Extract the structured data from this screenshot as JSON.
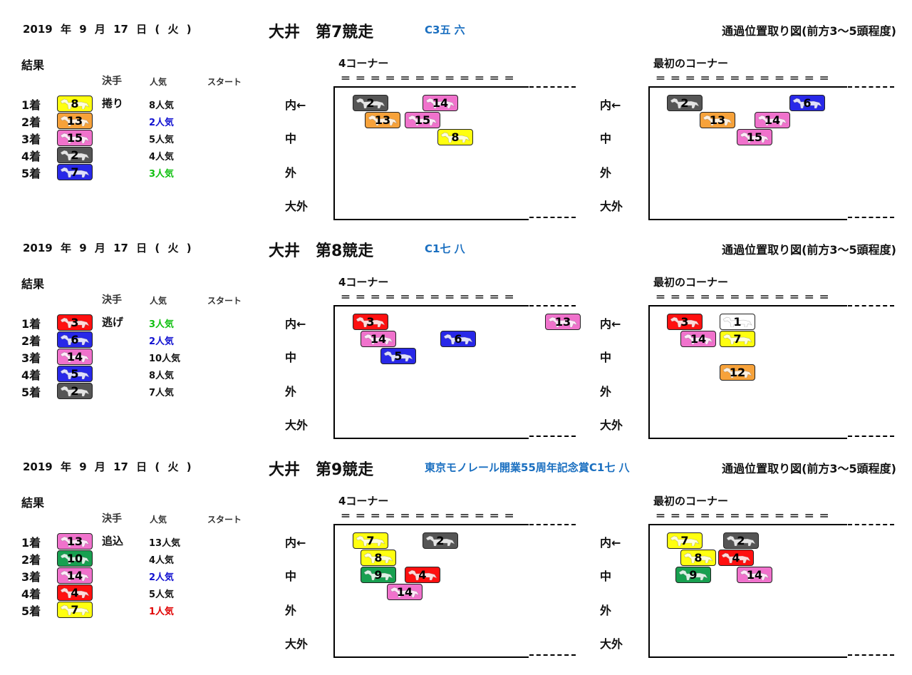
{
  "colors": {
    "white": "#ffffff",
    "black": "#555555",
    "red": "#ff1010",
    "blue": "#2828e8",
    "yellow": "#ffff10",
    "green": "#18a050",
    "orange": "#f7a23a",
    "pink": "#f072cc"
  },
  "pop_colors": {
    "1": "#e00000",
    "2": "#1010d0",
    "3": "#10c010",
    "default": "#111111"
  },
  "labels": {
    "result": "結果",
    "col_kimete": "決手",
    "col_pop": "人気",
    "col_start": "スタート",
    "corner4": "4コーナー",
    "corner_first": "最初のコーナー",
    "eq_marks": "＝ ＝ ＝ ＝ ＝ ＝ ＝ ＝ ＝ ＝ ＝ ＝",
    "rows": [
      "内←",
      "中",
      "外",
      "大外"
    ],
    "heading": "通過位置取り図(前方3～5頭程度)"
  },
  "races": [
    {
      "date": "2019 年 9 月 17 日 ( 火 )",
      "title": "大井　第7競走",
      "class": "C3五 六",
      "results": [
        {
          "pos": "1着",
          "num": "8",
          "color": "yellow",
          "kimete": "捲り",
          "pop": "8人気",
          "pop_rank": "8"
        },
        {
          "pos": "2着",
          "num": "13",
          "color": "orange",
          "kimete": "",
          "pop": "2人気",
          "pop_rank": "2"
        },
        {
          "pos": "3着",
          "num": "15",
          "color": "pink",
          "kimete": "",
          "pop": "5人気",
          "pop_rank": "5"
        },
        {
          "pos": "4着",
          "num": "2",
          "color": "black",
          "kimete": "",
          "pop": "4人気",
          "pop_rank": "4"
        },
        {
          "pos": "5着",
          "num": "7",
          "color": "blue",
          "kimete": "",
          "pop": "3人気",
          "pop_rank": "3"
        }
      ],
      "corner4": [
        {
          "num": "2",
          "color": "black"
        },
        {
          "num": "14",
          "color": "pink"
        },
        {
          "num": "13",
          "color": "orange"
        },
        {
          "num": "15",
          "color": "pink"
        },
        {
          "num": "8",
          "color": "yellow"
        }
      ],
      "corner_first": [
        {
          "num": "2",
          "color": "black"
        },
        {
          "num": "6",
          "color": "blue"
        },
        {
          "num": "13",
          "color": "orange"
        },
        {
          "num": "14",
          "color": "pink"
        },
        {
          "num": "15",
          "color": "pink"
        }
      ]
    },
    {
      "date": "2019 年 9 月 17 日 ( 火 )",
      "title": "大井　第8競走",
      "class": "C1七 八",
      "results": [
        {
          "pos": "1着",
          "num": "3",
          "color": "red",
          "kimete": "逃げ",
          "pop": "3人気",
          "pop_rank": "3"
        },
        {
          "pos": "2着",
          "num": "6",
          "color": "blue",
          "kimete": "",
          "pop": "2人気",
          "pop_rank": "2"
        },
        {
          "pos": "3着",
          "num": "14",
          "color": "pink",
          "kimete": "",
          "pop": "10人気",
          "pop_rank": "10"
        },
        {
          "pos": "4着",
          "num": "5",
          "color": "blue",
          "kimete": "",
          "pop": "8人気",
          "pop_rank": "8"
        },
        {
          "pos": "5着",
          "num": "2",
          "color": "black",
          "kimete": "",
          "pop": "7人気",
          "pop_rank": "7"
        }
      ],
      "corner4": [
        {
          "num": "3",
          "color": "red"
        },
        {
          "num": "13",
          "color": "pink"
        },
        {
          "num": "14",
          "color": "pink"
        },
        {
          "num": "6",
          "color": "blue"
        },
        {
          "num": "5",
          "color": "blue"
        }
      ],
      "corner_first": [
        {
          "num": "3",
          "color": "red"
        },
        {
          "num": "1",
          "color": "white"
        },
        {
          "num": "14",
          "color": "pink"
        },
        {
          "num": "7",
          "color": "yellow"
        },
        {
          "num": "12",
          "color": "orange"
        }
      ]
    },
    {
      "date": "2019 年 9 月 17 日 ( 火 )",
      "title": "大井　第9競走",
      "class": "東京モノレール開業55周年記念賞C1七 八",
      "results": [
        {
          "pos": "1着",
          "num": "13",
          "color": "pink",
          "kimete": "追込",
          "pop": "13人気",
          "pop_rank": "13"
        },
        {
          "pos": "2着",
          "num": "10",
          "color": "green",
          "kimete": "",
          "pop": "4人気",
          "pop_rank": "4"
        },
        {
          "pos": "3着",
          "num": "14",
          "color": "pink",
          "kimete": "",
          "pop": "2人気",
          "pop_rank": "2"
        },
        {
          "pos": "4着",
          "num": "4",
          "color": "red",
          "kimete": "",
          "pop": "5人気",
          "pop_rank": "5"
        },
        {
          "pos": "5着",
          "num": "7",
          "color": "yellow",
          "kimete": "",
          "pop": "1人気",
          "pop_rank": "1"
        }
      ],
      "corner4": [
        {
          "num": "7",
          "color": "yellow"
        },
        {
          "num": "2",
          "color": "black"
        },
        {
          "num": "8",
          "color": "yellow"
        },
        {
          "num": "9",
          "color": "green"
        },
        {
          "num": "4",
          "color": "red"
        },
        {
          "num": "14",
          "color": "pink"
        }
      ],
      "corner_first": [
        {
          "num": "7",
          "color": "yellow"
        },
        {
          "num": "2",
          "color": "black"
        },
        {
          "num": "8",
          "color": "yellow"
        },
        {
          "num": "4",
          "color": "red"
        },
        {
          "num": "9",
          "color": "green"
        },
        {
          "num": "14",
          "color": "pink"
        }
      ]
    }
  ]
}
